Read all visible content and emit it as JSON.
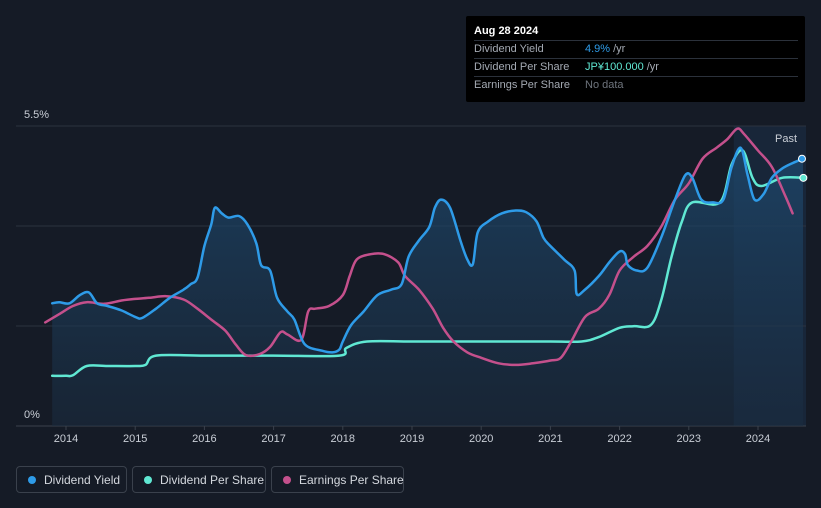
{
  "tooltip": {
    "date": "Aug 28 2024",
    "rows": [
      {
        "label": "Dividend Yield",
        "value": "4.9%",
        "unit": "/yr",
        "color": "#2e9be8"
      },
      {
        "label": "Dividend Per Share",
        "value": "JP¥100.000",
        "unit": "/yr",
        "color": "#60e8d3"
      },
      {
        "label": "Earnings Per Share",
        "value": "No data",
        "unit": "",
        "color": "#6f757e"
      }
    ]
  },
  "legend": [
    {
      "label": "Dividend Yield",
      "color": "#2e9be8"
    },
    {
      "label": "Dividend Per Share",
      "color": "#60e8d3"
    },
    {
      "label": "Earnings Per Share",
      "color": "#c4508c"
    }
  ],
  "chart_data": {
    "type": "line",
    "y_axis": {
      "top_label": "5.5%",
      "bottom_label": "0%",
      "range": [
        0,
        5.5
      ],
      "unit": "%"
    },
    "x_ticks": [
      "2014",
      "2015",
      "2016",
      "2017",
      "2018",
      "2019",
      "2020",
      "2021",
      "2022",
      "2023",
      "2024"
    ],
    "x_range": [
      2013.7,
      2024.67
    ],
    "past_label": "Past",
    "past_region_start": 2023.65,
    "series": [
      {
        "name": "Dividend Yield",
        "color": "#2e9be8",
        "filled": true,
        "points": [
          [
            2013.8,
            2.25
          ],
          [
            2013.9,
            2.27
          ],
          [
            2014.05,
            2.25
          ],
          [
            2014.2,
            2.4
          ],
          [
            2014.33,
            2.45
          ],
          [
            2014.45,
            2.25
          ],
          [
            2014.6,
            2.2
          ],
          [
            2014.8,
            2.12
          ],
          [
            2015.0,
            2.0
          ],
          [
            2015.1,
            1.98
          ],
          [
            2015.3,
            2.15
          ],
          [
            2015.5,
            2.35
          ],
          [
            2015.7,
            2.5
          ],
          [
            2015.8,
            2.6
          ],
          [
            2015.9,
            2.72
          ],
          [
            2016.0,
            3.3
          ],
          [
            2016.1,
            3.7
          ],
          [
            2016.15,
            4.0
          ],
          [
            2016.25,
            3.9
          ],
          [
            2016.35,
            3.82
          ],
          [
            2016.5,
            3.85
          ],
          [
            2016.62,
            3.7
          ],
          [
            2016.75,
            3.35
          ],
          [
            2016.82,
            2.95
          ],
          [
            2016.95,
            2.85
          ],
          [
            2017.05,
            2.35
          ],
          [
            2017.2,
            2.1
          ],
          [
            2017.3,
            1.95
          ],
          [
            2017.45,
            1.5
          ],
          [
            2017.7,
            1.38
          ],
          [
            2017.85,
            1.35
          ],
          [
            2017.95,
            1.4
          ],
          [
            2018.0,
            1.55
          ],
          [
            2018.12,
            1.85
          ],
          [
            2018.3,
            2.1
          ],
          [
            2018.5,
            2.4
          ],
          [
            2018.7,
            2.5
          ],
          [
            2018.85,
            2.6
          ],
          [
            2018.95,
            3.1
          ],
          [
            2019.1,
            3.4
          ],
          [
            2019.25,
            3.65
          ],
          [
            2019.33,
            4.0
          ],
          [
            2019.42,
            4.15
          ],
          [
            2019.55,
            4.0
          ],
          [
            2019.7,
            3.4
          ],
          [
            2019.8,
            3.05
          ],
          [
            2019.88,
            2.97
          ],
          [
            2019.95,
            3.55
          ],
          [
            2020.1,
            3.75
          ],
          [
            2020.3,
            3.9
          ],
          [
            2020.5,
            3.95
          ],
          [
            2020.65,
            3.92
          ],
          [
            2020.8,
            3.75
          ],
          [
            2020.9,
            3.45
          ],
          [
            2021.0,
            3.3
          ],
          [
            2021.2,
            3.05
          ],
          [
            2021.35,
            2.85
          ],
          [
            2021.38,
            2.42
          ],
          [
            2021.5,
            2.5
          ],
          [
            2021.7,
            2.75
          ],
          [
            2021.85,
            3.0
          ],
          [
            2022.0,
            3.2
          ],
          [
            2022.08,
            3.15
          ],
          [
            2022.12,
            2.95
          ],
          [
            2022.25,
            2.85
          ],
          [
            2022.4,
            2.9
          ],
          [
            2022.6,
            3.45
          ],
          [
            2022.8,
            4.15
          ],
          [
            2022.95,
            4.6
          ],
          [
            2023.05,
            4.55
          ],
          [
            2023.18,
            4.15
          ],
          [
            2023.35,
            4.1
          ],
          [
            2023.5,
            4.15
          ],
          [
            2023.62,
            4.75
          ],
          [
            2023.75,
            5.1
          ],
          [
            2023.85,
            4.6
          ],
          [
            2023.95,
            4.15
          ],
          [
            2024.08,
            4.25
          ],
          [
            2024.2,
            4.55
          ],
          [
            2024.35,
            4.72
          ],
          [
            2024.5,
            4.82
          ],
          [
            2024.65,
            4.9
          ]
        ]
      },
      {
        "name": "Dividend Per Share",
        "color": "#60e8d3",
        "filled": false,
        "points": [
          [
            2013.8,
            0.92
          ],
          [
            2014.0,
            0.92
          ],
          [
            2014.1,
            0.93
          ],
          [
            2014.3,
            1.1
          ],
          [
            2014.6,
            1.1
          ],
          [
            2015.0,
            1.1
          ],
          [
            2015.15,
            1.12
          ],
          [
            2015.3,
            1.29
          ],
          [
            2016.0,
            1.29
          ],
          [
            2017.0,
            1.29
          ],
          [
            2017.95,
            1.29
          ],
          [
            2018.05,
            1.43
          ],
          [
            2018.35,
            1.55
          ],
          [
            2019.0,
            1.55
          ],
          [
            2020.0,
            1.55
          ],
          [
            2021.0,
            1.55
          ],
          [
            2021.45,
            1.55
          ],
          [
            2021.7,
            1.63
          ],
          [
            2022.0,
            1.8
          ],
          [
            2022.2,
            1.83
          ],
          [
            2022.45,
            1.85
          ],
          [
            2022.6,
            2.3
          ],
          [
            2022.75,
            3.1
          ],
          [
            2022.9,
            3.75
          ],
          [
            2023.05,
            4.1
          ],
          [
            2023.45,
            4.1
          ],
          [
            2023.62,
            4.8
          ],
          [
            2023.78,
            5.05
          ],
          [
            2023.92,
            4.55
          ],
          [
            2024.05,
            4.4
          ],
          [
            2024.35,
            4.55
          ],
          [
            2024.67,
            4.55
          ]
        ]
      },
      {
        "name": "Earnings Per Share",
        "color": "#c4508c",
        "filled": false,
        "points": [
          [
            2013.7,
            1.9
          ],
          [
            2013.9,
            2.05
          ],
          [
            2014.1,
            2.2
          ],
          [
            2014.3,
            2.27
          ],
          [
            2014.55,
            2.24
          ],
          [
            2014.8,
            2.3
          ],
          [
            2015.0,
            2.33
          ],
          [
            2015.2,
            2.35
          ],
          [
            2015.45,
            2.38
          ],
          [
            2015.7,
            2.32
          ],
          [
            2015.9,
            2.15
          ],
          [
            2016.1,
            1.95
          ],
          [
            2016.3,
            1.75
          ],
          [
            2016.45,
            1.5
          ],
          [
            2016.6,
            1.3
          ],
          [
            2016.8,
            1.32
          ],
          [
            2016.95,
            1.45
          ],
          [
            2017.1,
            1.72
          ],
          [
            2017.2,
            1.68
          ],
          [
            2017.4,
            1.58
          ],
          [
            2017.5,
            2.1
          ],
          [
            2017.6,
            2.15
          ],
          [
            2017.8,
            2.2
          ],
          [
            2018.0,
            2.4
          ],
          [
            2018.1,
            2.75
          ],
          [
            2018.2,
            3.05
          ],
          [
            2018.4,
            3.15
          ],
          [
            2018.6,
            3.15
          ],
          [
            2018.8,
            3.0
          ],
          [
            2018.9,
            2.75
          ],
          [
            2019.1,
            2.5
          ],
          [
            2019.3,
            2.15
          ],
          [
            2019.45,
            1.8
          ],
          [
            2019.6,
            1.55
          ],
          [
            2019.8,
            1.35
          ],
          [
            2020.0,
            1.25
          ],
          [
            2020.25,
            1.15
          ],
          [
            2020.5,
            1.12
          ],
          [
            2020.75,
            1.15
          ],
          [
            2021.0,
            1.2
          ],
          [
            2021.15,
            1.25
          ],
          [
            2021.3,
            1.55
          ],
          [
            2021.5,
            2.0
          ],
          [
            2021.7,
            2.15
          ],
          [
            2021.85,
            2.4
          ],
          [
            2022.0,
            2.85
          ],
          [
            2022.2,
            3.1
          ],
          [
            2022.4,
            3.3
          ],
          [
            2022.6,
            3.65
          ],
          [
            2022.8,
            4.15
          ],
          [
            2023.0,
            4.45
          ],
          [
            2023.2,
            4.9
          ],
          [
            2023.4,
            5.1
          ],
          [
            2023.55,
            5.25
          ],
          [
            2023.7,
            5.45
          ],
          [
            2023.8,
            5.35
          ],
          [
            2024.0,
            5.05
          ],
          [
            2024.2,
            4.75
          ],
          [
            2024.4,
            4.2
          ],
          [
            2024.5,
            3.9
          ]
        ]
      }
    ]
  }
}
